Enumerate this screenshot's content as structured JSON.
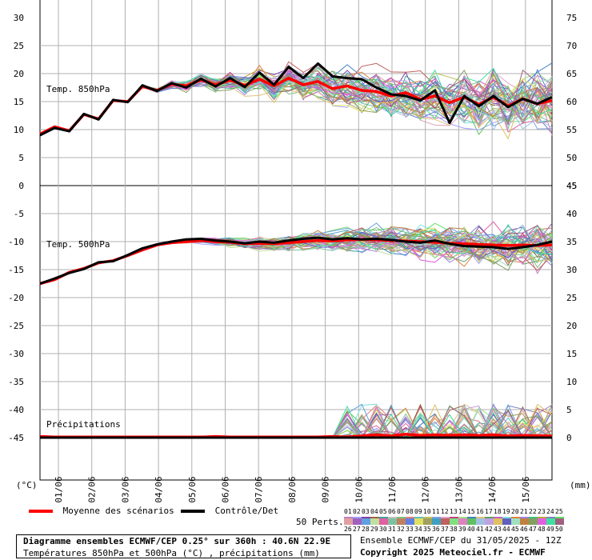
{
  "chart_data": {
    "type": "line",
    "panels": [
      {
        "title": "Temp. 850hPa",
        "ylim": [
          0,
          30
        ],
        "left_ticks": [
          "30",
          "25",
          "20",
          "15",
          "10",
          "5",
          "0"
        ],
        "right_ticks": [
          "75",
          "70",
          "65",
          "60",
          "55",
          "50",
          "45"
        ],
        "series": [
          {
            "name": "Moyenne des scénarios",
            "color": "#ff0000",
            "values": [
              9.2,
              10.5,
              9.8,
              12.7,
              11.9,
              15.2,
              15.0,
              17.7,
              17.0,
              18.1,
              17.8,
              18.9,
              18.0,
              18.8,
              17.9,
              19.0,
              17.8,
              19.2,
              18.0,
              18.6,
              17.3,
              17.8,
              17.0,
              16.8,
              16.0,
              16.6,
              15.4,
              16.0,
              14.8,
              15.8,
              14.5,
              15.8,
              14.2,
              15.5,
              14.6,
              15.2
            ]
          },
          {
            "name": "Contrôle/Det",
            "color": "#000000",
            "values": [
              9.0,
              10.3,
              9.7,
              12.8,
              11.8,
              15.3,
              14.9,
              17.9,
              16.9,
              18.3,
              17.5,
              19.1,
              17.7,
              19.2,
              17.6,
              20.2,
              18.0,
              21.2,
              19.2,
              21.8,
              19.5,
              19.2,
              19.0,
              17.5,
              16.3,
              16.0,
              15.2,
              17.0,
              11.2,
              16.0,
              14.2,
              16.0,
              14.0,
              15.5,
              14.6,
              15.8
            ]
          }
        ]
      },
      {
        "title": "Temp. 500hPa",
        "ylim": [
          -45,
          0
        ],
        "left_ticks": [
          "0",
          "-5",
          "-10",
          "-15",
          "-20",
          "-25",
          "-30",
          "-35",
          "-40",
          "-45"
        ],
        "right_ticks": [
          "45",
          "40",
          "35",
          "30",
          "25",
          "20",
          "15",
          "10",
          "5",
          "0"
        ],
        "series": [
          {
            "name": "Moyenne des scénarios",
            "color": "#ff0000",
            "values": [
              -17.5,
              -16.8,
              -15.5,
              -14.8,
              -13.8,
              -13.4,
              -12.5,
              -11.5,
              -10.6,
              -10.2,
              -10.0,
              -9.8,
              -10.0,
              -10.1,
              -10.4,
              -10.3,
              -10.4,
              -10.2,
              -10.0,
              -9.8,
              -9.9,
              -9.7,
              -9.6,
              -9.7,
              -9.8,
              -9.9,
              -10.0,
              -10.1,
              -10.3,
              -10.4,
              -10.5,
              -10.6,
              -10.7,
              -10.6,
              -10.7,
              -10.6
            ]
          },
          {
            "name": "Contrôle/Det",
            "color": "#000000",
            "values": [
              -17.5,
              -16.6,
              -15.6,
              -14.9,
              -13.7,
              -13.5,
              -12.4,
              -11.2,
              -10.5,
              -10.0,
              -9.6,
              -9.5,
              -9.8,
              -10.0,
              -10.3,
              -10.0,
              -10.2,
              -9.8,
              -9.5,
              -9.3,
              -9.6,
              -9.4,
              -9.6,
              -9.5,
              -9.7,
              -10.0,
              -10.2,
              -9.8,
              -10.4,
              -10.8,
              -10.9,
              -11.0,
              -11.3,
              -11.0,
              -10.6,
              -10.0
            ]
          }
        ]
      },
      {
        "title": "Précipitations",
        "unit": "mm",
        "ylim": [
          0,
          45
        ],
        "series": [
          {
            "name": "Moyenne des scénarios",
            "color": "#ff0000",
            "values": [
              0.2,
              0.1,
              0.1,
              0.1,
              0.1,
              0.1,
              0.1,
              0.1,
              0.1,
              0.1,
              0.1,
              0.1,
              0.2,
              0.1,
              0.1,
              0.1,
              0.1,
              0.1,
              0.1,
              0.1,
              0.2,
              0.1,
              0.3,
              0.5,
              0.3,
              0.6,
              0.4,
              0.5,
              0.4,
              0.5,
              0.4,
              0.5,
              0.3,
              0.4,
              0.3,
              0.3
            ]
          },
          {
            "name": "Contrôle/Det",
            "color": "#000000",
            "values": [
              0,
              0,
              0,
              0,
              0,
              0,
              0,
              0,
              0,
              0,
              0,
              0,
              0,
              0,
              0,
              0,
              0,
              0,
              0,
              0,
              0,
              0,
              0,
              0,
              0,
              0,
              0,
              0,
              0,
              0,
              0,
              0,
              0,
              0,
              0,
              0
            ]
          }
        ]
      }
    ],
    "x_ticks": [
      "01/06",
      "02/06",
      "03/06",
      "04/06",
      "05/06",
      "06/06",
      "07/06",
      "08/06",
      "09/06",
      "10/06",
      "11/06",
      "12/06",
      "13/06",
      "14/06",
      "15/06"
    ],
    "x_unit_left": "(°C)",
    "x_unit_right": "(mm)"
  },
  "legend": {
    "mean_label": "Moyenne des scénarios",
    "control_label": "Contrôle/Det",
    "perts_label": "50 Perts.",
    "perts_top": [
      "01",
      "02",
      "03",
      "04",
      "05",
      "06",
      "07",
      "08",
      "09",
      "10",
      "11",
      "12",
      "13",
      "14",
      "15",
      "16",
      "17",
      "18",
      "19",
      "20",
      "21",
      "22",
      "23",
      "24",
      "25"
    ],
    "perts_bottom": [
      "26",
      "27",
      "28",
      "29",
      "30",
      "31",
      "32",
      "33",
      "34",
      "35",
      "36",
      "37",
      "38",
      "39",
      "40",
      "41",
      "42",
      "43",
      "44",
      "45",
      "46",
      "47",
      "48",
      "49",
      "50"
    ],
    "perts_colors_top": [
      "#c080c0",
      "#a0a0ff",
      "#8040a0",
      "#a06040",
      "#40a0a0",
      "#c0c0c0",
      "#80c080",
      "#e08080",
      "#60c0c0",
      "#c0c060",
      "#80a0e0",
      "#e0a0c0",
      "#c04080",
      "#a0e080",
      "#4080c0",
      "#e0c080",
      "#60a060",
      "#c060c0",
      "#80e0e0",
      "#e08040",
      "#a080e0",
      "#40c080",
      "#c0a040",
      "#8080c0",
      "#60e060"
    ],
    "perts_colors_bottom": [
      "#e0a0a0",
      "#a060c0",
      "#60a0e0",
      "#c0e0a0",
      "#e060a0",
      "#80c0a0",
      "#c08060",
      "#6080e0",
      "#e0e060",
      "#a0a060",
      "#40a0c0",
      "#c06060",
      "#80e080",
      "#e080c0",
      "#60c060",
      "#a0c0e0",
      "#c0a0e0",
      "#e0c060",
      "#6060c0",
      "#a0e0c0",
      "#c08040",
      "#80a060",
      "#e060e0",
      "#40e0a0",
      "#a06080"
    ]
  },
  "footer": {
    "title": "Diagramme ensembles ECMWF/CEP 0.25° sur 360h : 40.6N 22.9E",
    "subtitle": "Températures 850hPa et 500hPa (°C) , précipitations (mm)",
    "run": "Ensemble ECMWF/CEP du 31/05/2025 - 12Z",
    "copyright": "Copyright 2025 Meteociel.fr - ECMWF"
  }
}
